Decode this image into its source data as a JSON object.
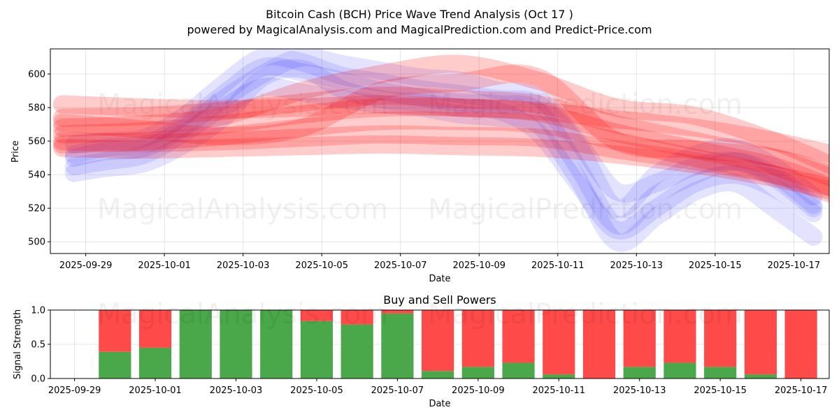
{
  "watermarks": [
    "MagicalAnalysis.com",
    "MagicalPrediction.com"
  ],
  "chart_data": [
    {
      "type": "line",
      "title": "Bitcoin Cash (BCH) Price Wave Trend Analysis (Oct 17 )",
      "subtitle": "powered by MagicalAnalysis.com and MagicalPrediction.com and Predict-Price.com",
      "xlabel": "Date",
      "ylabel": "Price",
      "ylim": [
        493,
        615
      ],
      "xlim_days": [
        -0.9,
        18.9
      ],
      "x_origin": "2025-09-29",
      "yticks": [
        500,
        520,
        540,
        560,
        580,
        600
      ],
      "xticks": [
        {
          "day": 0,
          "label": "2025-09-29"
        },
        {
          "day": 2,
          "label": "2025-10-01"
        },
        {
          "day": 4,
          "label": "2025-10-03"
        },
        {
          "day": 6,
          "label": "2025-10-05"
        },
        {
          "day": 8,
          "label": "2025-10-07"
        },
        {
          "day": 10,
          "label": "2025-10-09"
        },
        {
          "day": 12,
          "label": "2025-10-11"
        },
        {
          "day": 14,
          "label": "2025-10-13"
        },
        {
          "day": 16,
          "label": "2025-10-15"
        },
        {
          "day": 18,
          "label": "2025-10-17"
        }
      ],
      "grid": true,
      "bands": [
        {
          "color": "#0000ff",
          "points": [
            [
              -0.3,
              541
            ],
            [
              0.5,
              544
            ],
            [
              1.5,
              547
            ],
            [
              2.5,
              558
            ],
            [
              3.5,
              574
            ],
            [
              4.5,
              598
            ],
            [
              5.5,
              603
            ],
            [
              6.5,
              591
            ],
            [
              7.5,
              585
            ],
            [
              8.5,
              583
            ],
            [
              9.5,
              580
            ],
            [
              10.5,
              578
            ],
            [
              11.5,
              565
            ],
            [
              12.5,
              535
            ],
            [
              13.5,
              507
            ],
            [
              14.5,
              520
            ],
            [
              15.5,
              535
            ],
            [
              16.5,
              540
            ],
            [
              17.5,
              532
            ],
            [
              18.5,
              517
            ]
          ]
        },
        {
          "color": "#0000ff",
          "points": [
            [
              -0.3,
              552
            ],
            [
              0.5,
              556
            ],
            [
              1.5,
              558
            ],
            [
              2.5,
              570
            ],
            [
              3.5,
              588
            ],
            [
              4.5,
              604
            ],
            [
              5.5,
              601
            ],
            [
              6.5,
              596
            ],
            [
              7.5,
              590
            ],
            [
              8.5,
              586
            ],
            [
              9.5,
              583
            ],
            [
              10.5,
              582
            ],
            [
              11.5,
              578
            ],
            [
              12.5,
              545
            ],
            [
              13.5,
              510
            ],
            [
              14.5,
              528
            ],
            [
              15.5,
              540
            ],
            [
              16.5,
              548
            ],
            [
              17.5,
              540
            ],
            [
              18.5,
              522
            ]
          ]
        },
        {
          "color": "#0000ff",
          "points": [
            [
              -0.3,
              558
            ],
            [
              0.5,
              560
            ],
            [
              1.5,
              562
            ],
            [
              2.5,
              575
            ],
            [
              3.5,
              594
            ],
            [
              4.5,
              610
            ],
            [
              5.5,
              607
            ],
            [
              6.5,
              599
            ],
            [
              7.5,
              595
            ],
            [
              8.5,
              591
            ],
            [
              9.5,
              588
            ],
            [
              10.5,
              585
            ],
            [
              11.5,
              582
            ],
            [
              12.5,
              558
            ],
            [
              13.5,
              520
            ],
            [
              14.5,
              540
            ],
            [
              15.5,
              552
            ],
            [
              16.5,
              556
            ],
            [
              17.5,
              545
            ],
            [
              18.5,
              527
            ]
          ]
        },
        {
          "color": "#0000ff",
          "points": [
            [
              -0.3,
              545
            ],
            [
              0.5,
              548
            ],
            [
              1.5,
              552
            ],
            [
              2.5,
              565
            ],
            [
              3.5,
              580
            ],
            [
              4.5,
              592
            ],
            [
              5.5,
              589
            ],
            [
              6.5,
              585
            ],
            [
              7.5,
              582
            ],
            [
              8.5,
              580
            ],
            [
              9.5,
              576
            ],
            [
              10.5,
              574
            ],
            [
              11.5,
              570
            ],
            [
              12.5,
              538
            ],
            [
              13.5,
              500
            ],
            [
              14.5,
              515
            ],
            [
              15.5,
              530
            ],
            [
              16.5,
              535
            ],
            [
              17.5,
              520
            ],
            [
              18.5,
              503
            ]
          ]
        },
        {
          "color": "#0000ff",
          "points": [
            [
              -0.3,
              550
            ],
            [
              0.5,
              554
            ],
            [
              1.5,
              556
            ],
            [
              2.5,
              568
            ],
            [
              3.5,
              585
            ],
            [
              4.5,
              600
            ],
            [
              5.5,
              610
            ],
            [
              6.5,
              606
            ],
            [
              7.5,
              602
            ],
            [
              8.5,
              598
            ],
            [
              9.5,
              596
            ],
            [
              10.5,
              590
            ],
            [
              11.5,
              586
            ],
            [
              12.5,
              560
            ],
            [
              13.5,
              530
            ],
            [
              14.5,
              535
            ],
            [
              15.5,
              545
            ],
            [
              16.5,
              548
            ],
            [
              17.5,
              538
            ],
            [
              18.5,
              520
            ]
          ]
        },
        {
          "color": "#ff0000",
          "points": [
            [
              -0.6,
              582
            ],
            [
              1.5,
              580
            ],
            [
              3.5,
              579
            ],
            [
              5.5,
              580
            ],
            [
              7.5,
              582
            ],
            [
              9.5,
              580
            ],
            [
              11.5,
              578
            ],
            [
              13.5,
              573
            ],
            [
              15.5,
              568
            ],
            [
              17.5,
              560
            ],
            [
              19.0,
              552
            ]
          ]
        },
        {
          "color": "#ff0000",
          "points": [
            [
              -0.6,
              564
            ],
            [
              1.5,
              566
            ],
            [
              3.5,
              570
            ],
            [
              5.5,
              576
            ],
            [
              7.5,
              580
            ],
            [
              9.5,
              580
            ],
            [
              11.5,
              577
            ],
            [
              13.5,
              565
            ],
            [
              15.5,
              555
            ],
            [
              17.5,
              545
            ],
            [
              19.0,
              532
            ]
          ]
        },
        {
          "color": "#ff0000",
          "points": [
            [
              -0.6,
              574
            ],
            [
              1.5,
              575
            ],
            [
              3.5,
              578
            ],
            [
              5.5,
              583
            ],
            [
              7.5,
              587
            ],
            [
              9.5,
              585
            ],
            [
              11.5,
              582
            ],
            [
              13.5,
              570
            ],
            [
              15.5,
              560
            ],
            [
              17.5,
              550
            ],
            [
              19.0,
              538
            ]
          ]
        },
        {
          "color": "#ff0000",
          "points": [
            [
              -0.6,
              558
            ],
            [
              1.5,
              560
            ],
            [
              3.5,
              563
            ],
            [
              5.5,
              568
            ],
            [
              7.5,
              572
            ],
            [
              9.5,
              572
            ],
            [
              11.5,
              570
            ],
            [
              13.5,
              560
            ],
            [
              15.5,
              550
            ],
            [
              17.5,
              540
            ],
            [
              19.0,
              528
            ]
          ]
        },
        {
          "color": "#ff0000",
          "points": [
            [
              -0.6,
              571
            ],
            [
              1.5,
              567
            ],
            [
              3.5,
              563
            ],
            [
              5.5,
              568
            ],
            [
              7.5,
              590
            ],
            [
              9.5,
              595
            ],
            [
              11.5,
              598
            ],
            [
              13.5,
              560
            ],
            [
              15.5,
              555
            ],
            [
              17.5,
              550
            ],
            [
              19.0,
              540
            ]
          ]
        },
        {
          "color": "#ff0000",
          "points": [
            [
              -0.6,
              568
            ],
            [
              1.5,
              570
            ],
            [
              3.5,
              575
            ],
            [
              5.5,
              590
            ],
            [
              7.5,
              600
            ],
            [
              9.5,
              606
            ],
            [
              11.5,
              596
            ],
            [
              13.5,
              580
            ],
            [
              15.5,
              575
            ],
            [
              17.5,
              560
            ],
            [
              19.0,
              545
            ]
          ]
        },
        {
          "color": "#ff0000",
          "points": [
            [
              -0.6,
              560
            ],
            [
              1.5,
              559
            ],
            [
              3.5,
              560
            ],
            [
              5.5,
              562
            ],
            [
              7.5,
              564
            ],
            [
              9.5,
              563
            ],
            [
              11.5,
              562
            ],
            [
              13.5,
              555
            ],
            [
              15.5,
              548
            ],
            [
              17.5,
              540
            ],
            [
              19.0,
              532
            ]
          ]
        },
        {
          "color": "#ff0000",
          "points": [
            [
              -0.6,
              556
            ],
            [
              1.5,
              555
            ],
            [
              3.5,
              556
            ],
            [
              5.5,
              557
            ],
            [
              7.5,
              558
            ],
            [
              9.5,
              557
            ],
            [
              11.5,
              556
            ],
            [
              13.5,
              552
            ],
            [
              15.5,
              546
            ],
            [
              17.5,
              538
            ],
            [
              19.0,
              530
            ]
          ]
        }
      ]
    },
    {
      "type": "bar",
      "title": "Buy and Sell Powers",
      "xlabel": "Date",
      "ylabel": "Signal Strength",
      "ylim": [
        0,
        1
      ],
      "xlim_days": [
        -0.6,
        18.7
      ],
      "x_origin": "2025-09-29",
      "yticks": [
        {
          "value": 0,
          "label": "0.0"
        },
        {
          "value": 0.5,
          "label": "0.5"
        },
        {
          "value": 1,
          "label": "1.0"
        }
      ],
      "xticks": [
        {
          "day": 0,
          "label": "2025-09-29"
        },
        {
          "day": 2,
          "label": "2025-10-01"
        },
        {
          "day": 4,
          "label": "2025-10-03"
        },
        {
          "day": 6,
          "label": "2025-10-05"
        },
        {
          "day": 8,
          "label": "2025-10-07"
        },
        {
          "day": 10,
          "label": "2025-10-09"
        },
        {
          "day": 12,
          "label": "2025-10-11"
        },
        {
          "day": 14,
          "label": "2025-10-13"
        },
        {
          "day": 16,
          "label": "2025-10-15"
        },
        {
          "day": 18,
          "label": "2025-10-17"
        }
      ],
      "categories_day": [
        1,
        2,
        3,
        4,
        5,
        6,
        7,
        8,
        9,
        10,
        11,
        12,
        13,
        14,
        15,
        16,
        17,
        18
      ],
      "series": [
        {
          "name": "Buy",
          "color": "#4aa84a",
          "values": [
            0.39,
            0.45,
            1.0,
            1.0,
            1.0,
            0.84,
            0.79,
            0.95,
            0.11,
            0.17,
            0.23,
            0.06,
            0.0,
            0.17,
            0.23,
            0.17,
            0.06,
            0.0
          ]
        },
        {
          "name": "Sell",
          "color": "#ff4a4a",
          "values": [
            0.61,
            0.55,
            0.0,
            0.0,
            0.0,
            0.16,
            0.21,
            0.05,
            0.89,
            0.83,
            0.77,
            0.94,
            1.0,
            0.83,
            0.77,
            0.83,
            0.94,
            1.0
          ]
        }
      ],
      "grid": true
    }
  ]
}
